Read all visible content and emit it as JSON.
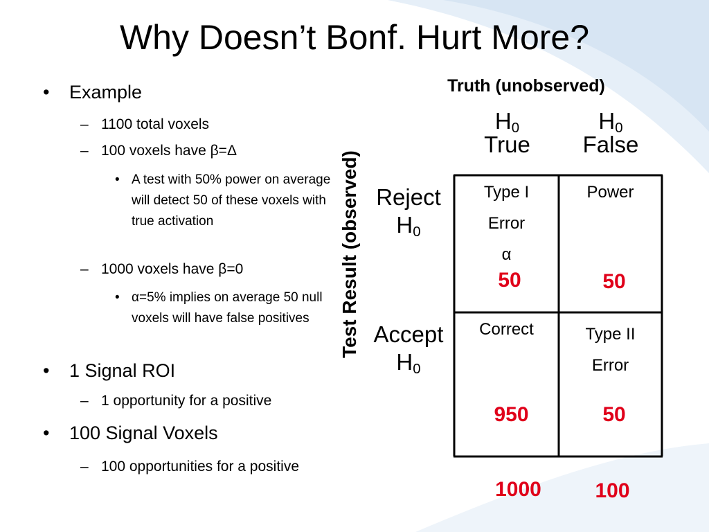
{
  "slide": {
    "title": "Why Doesn’t Bonf. Hurt More?",
    "colors": {
      "text": "#000000",
      "accent_red": "#e0001a",
      "swoosh": "#dbe8f5"
    }
  },
  "bullets": [
    {
      "level": 1,
      "marker": "•",
      "text": "Example"
    },
    {
      "level": 2,
      "marker": "–",
      "text": "1100 total voxels"
    },
    {
      "level": 2,
      "marker": "–",
      "text": "100 voxels have β=Δ"
    },
    {
      "level": 3,
      "marker": "•",
      "text": "A test with 50% power on average will detect 50 of these voxels with true activation"
    },
    {
      "level": 2,
      "marker": "–",
      "text": "1000 voxels have β=0"
    },
    {
      "level": 3,
      "marker": "•",
      "text": "α=5% implies on average 50 null voxels will have false positives"
    },
    {
      "level": 1,
      "marker": "•",
      "text": "1 Signal ROI"
    },
    {
      "level": 2,
      "marker": "–",
      "text": "1 opportunity for a positive"
    },
    {
      "level": 1,
      "marker": "•",
      "text": "100 Signal Voxels"
    },
    {
      "level": 2,
      "marker": "–",
      "text": "100 opportunities for a positive"
    }
  ],
  "table": {
    "truth_label": "Truth (unobserved)",
    "test_label": "Test Result (observed)",
    "col_headers": [
      {
        "h": "H",
        "sub": "0",
        "word": "True"
      },
      {
        "h": "H",
        "sub": "0",
        "word": "False"
      }
    ],
    "row_headers": [
      {
        "word": "Reject",
        "h": "H",
        "sub": "0"
      },
      {
        "word": "Accept",
        "h": "H",
        "sub": "0"
      }
    ],
    "cells": {
      "reject_true": [
        "Type I",
        "Error",
        "α"
      ],
      "reject_false": [
        "Power"
      ],
      "accept_true": [
        "Correct"
      ],
      "accept_false": [
        "Type II",
        "Error"
      ]
    },
    "counts": {
      "reject_true": "50",
      "reject_false": "50",
      "accept_true": "950",
      "accept_false": "50"
    },
    "totals": [
      "1000",
      "100"
    ]
  }
}
